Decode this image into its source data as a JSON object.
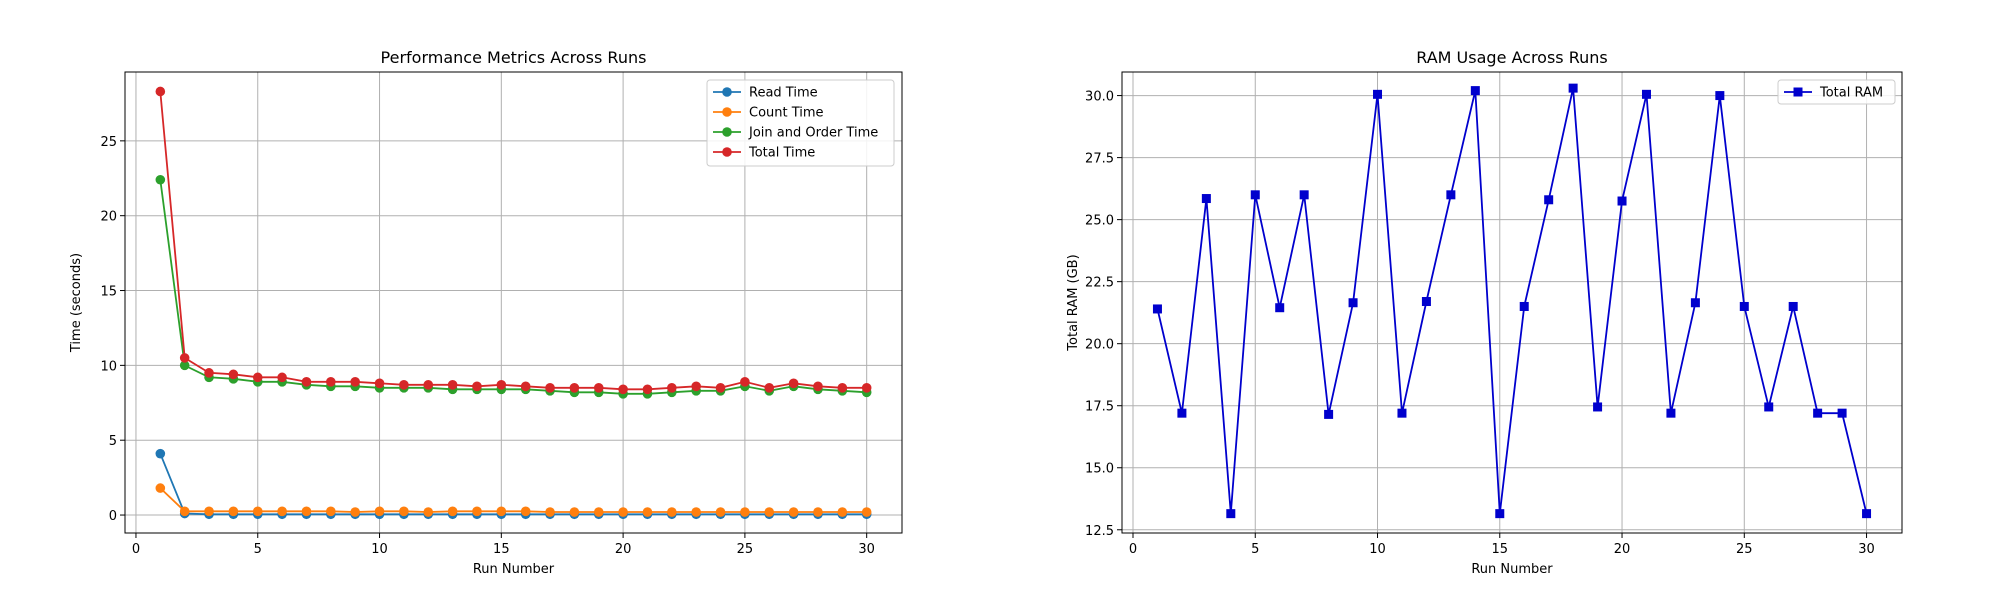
{
  "chart_data": [
    {
      "type": "line",
      "title": "Performance Metrics Across Runs",
      "xlabel": "Run Number",
      "ylabel": "Time (seconds)",
      "xlim": [
        -0.45,
        31.45
      ],
      "ylim": [
        -1.2,
        29.6
      ],
      "xticks": [
        0,
        5,
        10,
        15,
        20,
        25,
        30
      ],
      "yticks": [
        0,
        5,
        10,
        15,
        20,
        25
      ],
      "grid": true,
      "legend_position": "top-right",
      "x": [
        1,
        2,
        3,
        4,
        5,
        6,
        7,
        8,
        9,
        10,
        11,
        12,
        13,
        14,
        15,
        16,
        17,
        18,
        19,
        20,
        21,
        22,
        23,
        24,
        25,
        26,
        27,
        28,
        29,
        30
      ],
      "series": [
        {
          "name": "Read Time",
          "color": "#1f77b4",
          "marker": "circle",
          "values": [
            4.1,
            0.1,
            0.05,
            0.05,
            0.05,
            0.05,
            0.05,
            0.05,
            0.05,
            0.05,
            0.05,
            0.05,
            0.05,
            0.05,
            0.05,
            0.05,
            0.05,
            0.05,
            0.05,
            0.05,
            0.05,
            0.05,
            0.05,
            0.05,
            0.05,
            0.05,
            0.05,
            0.05,
            0.05,
            0.05
          ]
        },
        {
          "name": "Count Time",
          "color": "#ff7f0e",
          "marker": "circle",
          "values": [
            1.8,
            0.25,
            0.25,
            0.25,
            0.25,
            0.25,
            0.25,
            0.25,
            0.2,
            0.25,
            0.25,
            0.2,
            0.25,
            0.25,
            0.25,
            0.25,
            0.2,
            0.2,
            0.2,
            0.2,
            0.2,
            0.2,
            0.2,
            0.2,
            0.2,
            0.2,
            0.2,
            0.2,
            0.2,
            0.2
          ]
        },
        {
          "name": "Join and Order Time",
          "color": "#2ca02c",
          "marker": "circle",
          "values": [
            22.4,
            10.0,
            9.2,
            9.1,
            8.9,
            8.9,
            8.7,
            8.6,
            8.6,
            8.5,
            8.5,
            8.5,
            8.4,
            8.4,
            8.4,
            8.4,
            8.3,
            8.2,
            8.2,
            8.1,
            8.1,
            8.2,
            8.3,
            8.3,
            8.6,
            8.3,
            8.6,
            8.4,
            8.3,
            8.2
          ]
        },
        {
          "name": "Total Time",
          "color": "#d62728",
          "marker": "circle",
          "values": [
            28.3,
            10.5,
            9.5,
            9.4,
            9.2,
            9.2,
            8.9,
            8.9,
            8.9,
            8.8,
            8.7,
            8.7,
            8.7,
            8.6,
            8.7,
            8.6,
            8.5,
            8.5,
            8.5,
            8.4,
            8.4,
            8.5,
            8.6,
            8.5,
            8.9,
            8.5,
            8.8,
            8.6,
            8.5,
            8.5
          ]
        }
      ]
    },
    {
      "type": "line",
      "title": "RAM Usage Across Runs",
      "xlabel": "Run Number",
      "ylabel": "Total RAM (GB)",
      "xlim": [
        -0.45,
        31.45
      ],
      "ylim": [
        12.37,
        30.95
      ],
      "xticks": [
        0,
        5,
        10,
        15,
        20,
        25,
        30
      ],
      "yticks": [
        12.5,
        15.0,
        17.5,
        20.0,
        22.5,
        25.0,
        27.5,
        30.0
      ],
      "ytick_labels": [
        "12.5",
        "15.0",
        "17.5",
        "20.0",
        "22.5",
        "25.0",
        "27.5",
        "30.0"
      ],
      "grid": true,
      "legend_position": "top-right",
      "x": [
        1,
        2,
        3,
        4,
        5,
        6,
        7,
        8,
        9,
        10,
        11,
        12,
        13,
        14,
        15,
        16,
        17,
        18,
        19,
        20,
        21,
        22,
        23,
        24,
        25,
        26,
        27,
        28,
        29,
        30
      ],
      "series": [
        {
          "name": "Total RAM",
          "color": "#0000cd",
          "marker": "square",
          "values": [
            21.4,
            17.2,
            25.85,
            13.15,
            26.0,
            21.45,
            26.0,
            17.15,
            21.65,
            30.05,
            17.2,
            21.7,
            26.0,
            30.2,
            13.15,
            21.5,
            25.8,
            30.3,
            17.45,
            25.75,
            30.05,
            17.2,
            21.65,
            30.0,
            21.5,
            17.45,
            21.5,
            17.2,
            17.2,
            13.15
          ]
        }
      ]
    }
  ]
}
